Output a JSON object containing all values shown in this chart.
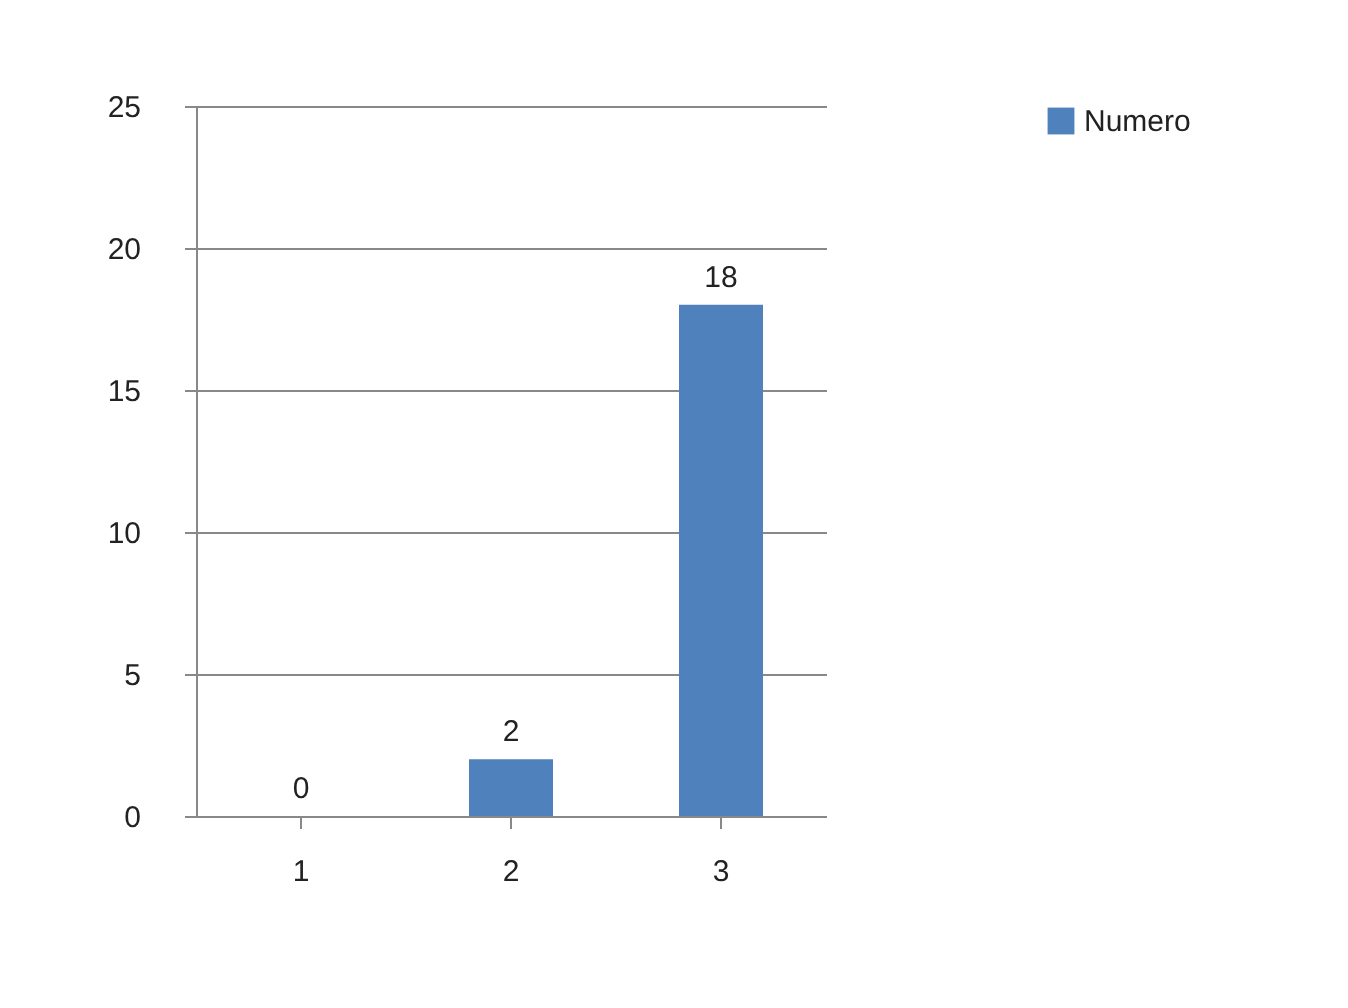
{
  "chart_data": {
    "type": "bar",
    "categories": [
      "1",
      "2",
      "3"
    ],
    "series": [
      {
        "name": "Numero",
        "color": "#4f81bd",
        "values": [
          0,
          2,
          18
        ]
      }
    ],
    "ylim": [
      0,
      25
    ],
    "yticks": [
      0,
      5,
      10,
      15,
      20,
      25
    ],
    "grid": "y",
    "legend": "right",
    "data_labels": true
  }
}
